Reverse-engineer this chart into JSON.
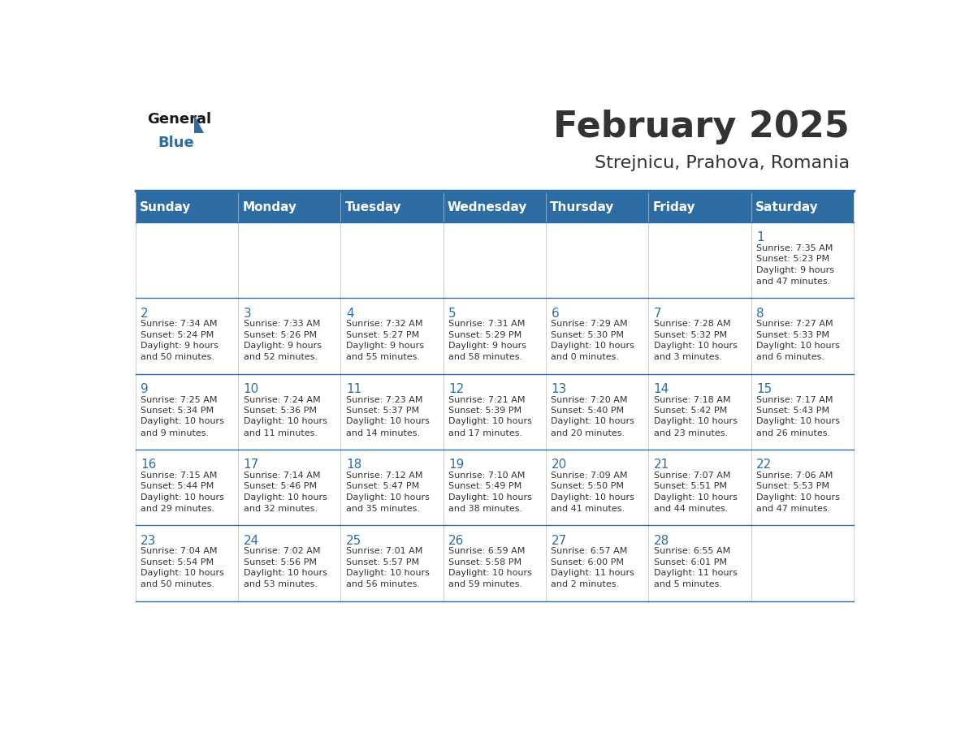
{
  "title": "February 2025",
  "subtitle": "Strejnicu, Prahova, Romania",
  "header_bg": "#2E6DA4",
  "header_text": "#FFFFFF",
  "cell_bg_white": "#FFFFFF",
  "divider_color": "#2E6DA4",
  "text_color_dark": "#333333",
  "text_color_num": "#2E6DA4",
  "days_of_week": [
    "Sunday",
    "Monday",
    "Tuesday",
    "Wednesday",
    "Thursday",
    "Friday",
    "Saturday"
  ],
  "weeks": [
    [
      {
        "day": null,
        "sunrise": null,
        "sunset": null,
        "daylight": null
      },
      {
        "day": null,
        "sunrise": null,
        "sunset": null,
        "daylight": null
      },
      {
        "day": null,
        "sunrise": null,
        "sunset": null,
        "daylight": null
      },
      {
        "day": null,
        "sunrise": null,
        "sunset": null,
        "daylight": null
      },
      {
        "day": null,
        "sunrise": null,
        "sunset": null,
        "daylight": null
      },
      {
        "day": null,
        "sunrise": null,
        "sunset": null,
        "daylight": null
      },
      {
        "day": "1",
        "sunrise": "7:35 AM",
        "sunset": "5:23 PM",
        "daylight": "9 hours\nand 47 minutes."
      }
    ],
    [
      {
        "day": "2",
        "sunrise": "7:34 AM",
        "sunset": "5:24 PM",
        "daylight": "9 hours\nand 50 minutes."
      },
      {
        "day": "3",
        "sunrise": "7:33 AM",
        "sunset": "5:26 PM",
        "daylight": "9 hours\nand 52 minutes."
      },
      {
        "day": "4",
        "sunrise": "7:32 AM",
        "sunset": "5:27 PM",
        "daylight": "9 hours\nand 55 minutes."
      },
      {
        "day": "5",
        "sunrise": "7:31 AM",
        "sunset": "5:29 PM",
        "daylight": "9 hours\nand 58 minutes."
      },
      {
        "day": "6",
        "sunrise": "7:29 AM",
        "sunset": "5:30 PM",
        "daylight": "10 hours\nand 0 minutes."
      },
      {
        "day": "7",
        "sunrise": "7:28 AM",
        "sunset": "5:32 PM",
        "daylight": "10 hours\nand 3 minutes."
      },
      {
        "day": "8",
        "sunrise": "7:27 AM",
        "sunset": "5:33 PM",
        "daylight": "10 hours\nand 6 minutes."
      }
    ],
    [
      {
        "day": "9",
        "sunrise": "7:25 AM",
        "sunset": "5:34 PM",
        "daylight": "10 hours\nand 9 minutes."
      },
      {
        "day": "10",
        "sunrise": "7:24 AM",
        "sunset": "5:36 PM",
        "daylight": "10 hours\nand 11 minutes."
      },
      {
        "day": "11",
        "sunrise": "7:23 AM",
        "sunset": "5:37 PM",
        "daylight": "10 hours\nand 14 minutes."
      },
      {
        "day": "12",
        "sunrise": "7:21 AM",
        "sunset": "5:39 PM",
        "daylight": "10 hours\nand 17 minutes."
      },
      {
        "day": "13",
        "sunrise": "7:20 AM",
        "sunset": "5:40 PM",
        "daylight": "10 hours\nand 20 minutes."
      },
      {
        "day": "14",
        "sunrise": "7:18 AM",
        "sunset": "5:42 PM",
        "daylight": "10 hours\nand 23 minutes."
      },
      {
        "day": "15",
        "sunrise": "7:17 AM",
        "sunset": "5:43 PM",
        "daylight": "10 hours\nand 26 minutes."
      }
    ],
    [
      {
        "day": "16",
        "sunrise": "7:15 AM",
        "sunset": "5:44 PM",
        "daylight": "10 hours\nand 29 minutes."
      },
      {
        "day": "17",
        "sunrise": "7:14 AM",
        "sunset": "5:46 PM",
        "daylight": "10 hours\nand 32 minutes."
      },
      {
        "day": "18",
        "sunrise": "7:12 AM",
        "sunset": "5:47 PM",
        "daylight": "10 hours\nand 35 minutes."
      },
      {
        "day": "19",
        "sunrise": "7:10 AM",
        "sunset": "5:49 PM",
        "daylight": "10 hours\nand 38 minutes."
      },
      {
        "day": "20",
        "sunrise": "7:09 AM",
        "sunset": "5:50 PM",
        "daylight": "10 hours\nand 41 minutes."
      },
      {
        "day": "21",
        "sunrise": "7:07 AM",
        "sunset": "5:51 PM",
        "daylight": "10 hours\nand 44 minutes."
      },
      {
        "day": "22",
        "sunrise": "7:06 AM",
        "sunset": "5:53 PM",
        "daylight": "10 hours\nand 47 minutes."
      }
    ],
    [
      {
        "day": "23",
        "sunrise": "7:04 AM",
        "sunset": "5:54 PM",
        "daylight": "10 hours\nand 50 minutes."
      },
      {
        "day": "24",
        "sunrise": "7:02 AM",
        "sunset": "5:56 PM",
        "daylight": "10 hours\nand 53 minutes."
      },
      {
        "day": "25",
        "sunrise": "7:01 AM",
        "sunset": "5:57 PM",
        "daylight": "10 hours\nand 56 minutes."
      },
      {
        "day": "26",
        "sunrise": "6:59 AM",
        "sunset": "5:58 PM",
        "daylight": "10 hours\nand 59 minutes."
      },
      {
        "day": "27",
        "sunrise": "6:57 AM",
        "sunset": "6:00 PM",
        "daylight": "11 hours\nand 2 minutes."
      },
      {
        "day": "28",
        "sunrise": "6:55 AM",
        "sunset": "6:01 PM",
        "daylight": "11 hours\nand 5 minutes."
      },
      {
        "day": null,
        "sunrise": null,
        "sunset": null,
        "daylight": null
      }
    ]
  ],
  "logo_general_color": "#1a1a1a",
  "logo_blue_color": "#2E6DA4",
  "logo_triangle_color": "#2E6DA4"
}
